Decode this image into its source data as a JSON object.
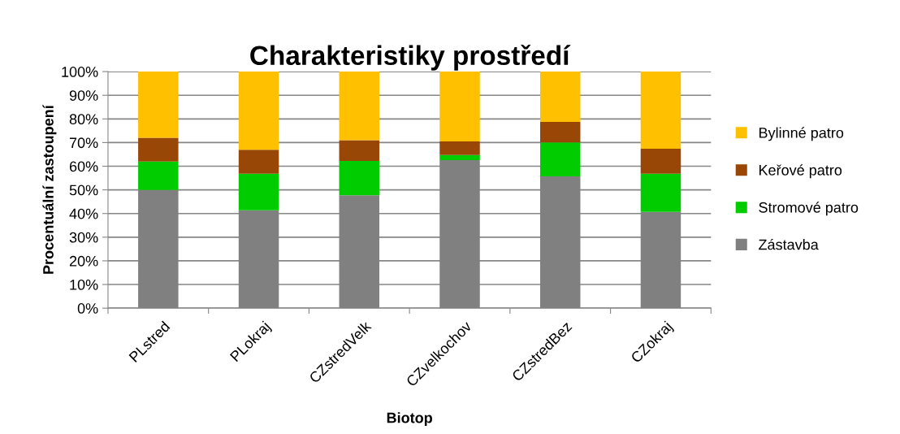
{
  "chart_data": {
    "type": "bar",
    "stacked": true,
    "title": "Charakteristiky prostředí",
    "xlabel": "Biotop",
    "ylabel": "Procentuální zastoupení",
    "categories": [
      "PLstred",
      "PLokraj",
      "CZstredVelk",
      "CZvelkochov",
      "CZstredBez",
      "CZokraj"
    ],
    "series": [
      {
        "name": "Zástavba",
        "color": "#808080",
        "values": [
          50,
          41.4,
          47.7,
          62.6,
          55.7,
          40.7
        ]
      },
      {
        "name": "Stromové patro",
        "color": "#00cc00",
        "values": [
          12,
          15.4,
          14.5,
          2.1,
          14.4,
          16.1
        ]
      },
      {
        "name": "Keřové patro",
        "color": "#994706",
        "values": [
          10,
          10.2,
          8.8,
          5.8,
          8.6,
          10.6
        ]
      },
      {
        "name": "Bylinné patro",
        "color": "#ffc000",
        "values": [
          28,
          33,
          29,
          29.5,
          21.3,
          32.6
        ]
      }
    ],
    "ylim": [
      0,
      100
    ],
    "yticks": [
      {
        "value": 0,
        "label": "0%"
      },
      {
        "value": 10,
        "label": "10%"
      },
      {
        "value": 20,
        "label": "20%"
      },
      {
        "value": 30,
        "label": "30%"
      },
      {
        "value": 40,
        "label": "40%"
      },
      {
        "value": 50,
        "label": "50%"
      },
      {
        "value": 60,
        "label": "60%"
      },
      {
        "value": 70,
        "label": "70%"
      },
      {
        "value": 80,
        "label": "80%"
      },
      {
        "value": 90,
        "label": "90%"
      },
      {
        "value": 100,
        "label": "100%"
      }
    ],
    "grid": "y",
    "legend": "right"
  }
}
